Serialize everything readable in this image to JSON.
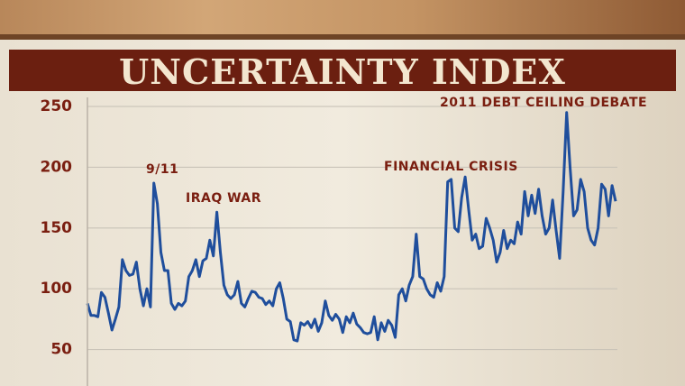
{
  "chart_data": {
    "type": "line",
    "title": "UNCERTAINTY INDEX",
    "annotations": [
      "9/11",
      "IRAQ WAR",
      "FINANCIAL CRISIS",
      "2011 DEBT CEILING DEBATE"
    ],
    "color": "#1f4e9c",
    "ylim": [
      20,
      256
    ],
    "yticks": [
      50,
      100,
      150,
      200,
      250
    ],
    "grid": true,
    "values": [
      88,
      78,
      78,
      77,
      97,
      93,
      80,
      66,
      75,
      85,
      124,
      115,
      111,
      112,
      122,
      100,
      86,
      100,
      85,
      187,
      170,
      130,
      115,
      115,
      88,
      83,
      88,
      86,
      90,
      110,
      115,
      124,
      110,
      123,
      125,
      140,
      127,
      163,
      130,
      103,
      95,
      92,
      95,
      106,
      88,
      85,
      92,
      98,
      97,
      93,
      92,
      87,
      90,
      86,
      100,
      105,
      92,
      75,
      73,
      58,
      57,
      72,
      70,
      73,
      68,
      75,
      65,
      72,
      90,
      78,
      74,
      79,
      75,
      64,
      77,
      72,
      80,
      71,
      68,
      64,
      63,
      64,
      77,
      58,
      72,
      65,
      74,
      70,
      60,
      95,
      100,
      90,
      103,
      110,
      145,
      110,
      108,
      100,
      95,
      93,
      105,
      98,
      110,
      188,
      190,
      150,
      147,
      175,
      192,
      165,
      140,
      145,
      133,
      135,
      158,
      150,
      140,
      122,
      130,
      148,
      133,
      140,
      137,
      155,
      145,
      180,
      160,
      177,
      162,
      182,
      160,
      145,
      150,
      173,
      148,
      125,
      180,
      245,
      200,
      160,
      165,
      190,
      180,
      150,
      140,
      136,
      150,
      186,
      182,
      160,
      185,
      172
    ]
  }
}
